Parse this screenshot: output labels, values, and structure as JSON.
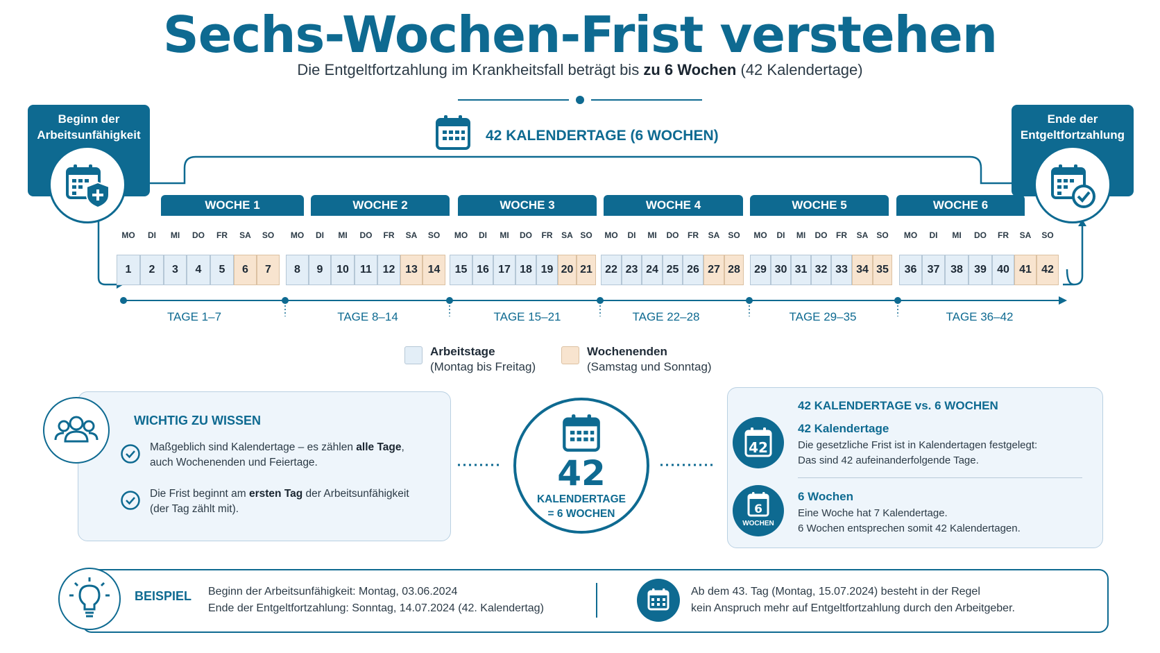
{
  "title": "Sechs-Wochen-Frist verstehen",
  "subtitle": {
    "pre": "Die Entgeltfortzahlung im Krankheitsfall beträgt bis ",
    "bold": "zu 6 Wochen",
    "post": " (42 Kalendertage)"
  },
  "span_label": "42 KALENDERTAGE (6 WOCHEN)",
  "start_box": {
    "line1": "Beginn der",
    "line2": "Arbeitsunfähigkeit"
  },
  "end_box": {
    "line1": "Ende der",
    "line2": "Entgeltfortzahlung"
  },
  "weeks": [
    "WOCHE 1",
    "WOCHE 2",
    "WOCHE 3",
    "WOCHE 4",
    "WOCHE 5",
    "WOCHE 6"
  ],
  "weekdays": [
    "MO",
    "DI",
    "MI",
    "DO",
    "FR",
    "SA",
    "SO"
  ],
  "ranges": [
    "TAGE 1–7",
    "TAGE 8–14",
    "TAGE 15–21",
    "TAGE 22–28",
    "TAGE 29–35",
    "TAGE 36–42"
  ],
  "days": [
    "1",
    "2",
    "3",
    "4",
    "5",
    "6",
    "7",
    "8",
    "9",
    "10",
    "11",
    "12",
    "13",
    "14",
    "15",
    "16",
    "17",
    "18",
    "19",
    "20",
    "21",
    "22",
    "23",
    "24",
    "25",
    "26",
    "27",
    "28",
    "29",
    "30",
    "31",
    "32",
    "33",
    "34",
    "35",
    "36",
    "37",
    "38",
    "39",
    "40",
    "41",
    "42"
  ],
  "legend": {
    "workdays": {
      "title": "Arbeitstage",
      "sub": "(Montag bis Freitag)"
    },
    "weekends": {
      "title": "Wochenenden",
      "sub": "(Samstag und Sonntag)"
    }
  },
  "info": {
    "heading": "WICHTIG ZU WISSEN",
    "p1": {
      "a": "Maßgeblich sind Kalendertage – es zählen ",
      "b": "alle Tage",
      "c": ",",
      "line2": "auch Wochenenden und Feiertage."
    },
    "p2": {
      "a": "Die Frist beginnt am ",
      "b": "ersten Tag",
      "c": " der Arbeitsunfähigkeit",
      "line2": "(der Tag zählt mit)."
    }
  },
  "center": {
    "number": "42",
    "line1": "KALENDERTAGE",
    "line2": "= 6 WOCHEN"
  },
  "compare": {
    "heading": "42 KALENDERTAGE vs. 6 WOCHEN",
    "a": {
      "icon_text": "42",
      "title": "42 Kalendertage",
      "line1": "Die gesetzliche Frist ist in Kalendertagen festgelegt:",
      "line2": "Das sind 42 aufeinanderfolgende Tage."
    },
    "b": {
      "icon_num": "6",
      "icon_text": "WOCHEN",
      "title": "6 Wochen",
      "line1": "Eine Woche hat 7 Kalendertage.",
      "line2": "6 Wochen entsprechen somit 42 Kalendertagen."
    }
  },
  "example": {
    "label": "BEISPIEL",
    "line1": "Beginn der Arbeitsunfähigkeit: Montag, 03.06.2024",
    "line2": "Ende der Entgeltfortzahlung: Sonntag, 14.07.2024 (42. Kalendertag)",
    "right1": "Ab dem 43. Tag (Montag, 15.07.2024) besteht in der Regel",
    "right2": "kein Anspruch mehr auf Entgeltfortzahlung durch den Arbeitgeber."
  },
  "colors": {
    "primary": "#0e6a91",
    "workday": "#e3eef7",
    "weekend": "#f8e4cf"
  }
}
